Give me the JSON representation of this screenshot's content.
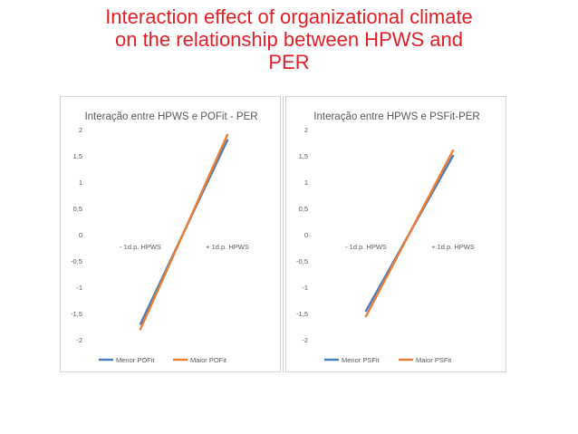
{
  "slide": {
    "title_line1": "Interaction effect of organizational climate",
    "title_line2": "on the relationship between HPWS and",
    "title_line3": "PER"
  },
  "chart_data": [
    {
      "type": "line",
      "title": "Interação entre HPWS e POFit - PER",
      "categories": [
        "- 1d.p. HPWS",
        "+ 1d.p. HPWS"
      ],
      "ylim": [
        -2,
        2
      ],
      "yticks": [
        2,
        1.5,
        1,
        0.5,
        0,
        -0.5,
        -1,
        -1.5,
        -2
      ],
      "ytick_labels": [
        "2",
        "1,5",
        "1",
        "0,5",
        "0",
        "-0,5",
        "-1",
        "-1,5",
        "-2"
      ],
      "series": [
        {
          "name": "Menor POFit",
          "values": [
            -1.7,
            1.8
          ],
          "color": "#4a7ebb"
        },
        {
          "name": "Maior POFit",
          "values": [
            -1.8,
            1.9
          ],
          "color": "#ed7d31"
        }
      ],
      "legend_position": "bottom",
      "grid": false
    },
    {
      "type": "line",
      "title": "Interação entre HPWS e PSFit-PER",
      "categories": [
        "- 1d.p. HPWS",
        "+ 1d.p. HPWS"
      ],
      "ylim": [
        -2,
        2
      ],
      "yticks": [
        2,
        1.5,
        1,
        0.5,
        0,
        -0.5,
        -1,
        -1.5,
        -2
      ],
      "ytick_labels": [
        "2",
        "1,5",
        "1",
        "0,5",
        "0",
        "-0,5",
        "-1",
        "-1,5",
        "-2"
      ],
      "series": [
        {
          "name": "Menor PSFit",
          "values": [
            -1.45,
            1.5
          ],
          "color": "#4a7ebb"
        },
        {
          "name": "Maior PSFit",
          "values": [
            -1.55,
            1.6
          ],
          "color": "#ed7d31"
        }
      ],
      "legend_position": "bottom",
      "grid": false
    }
  ]
}
